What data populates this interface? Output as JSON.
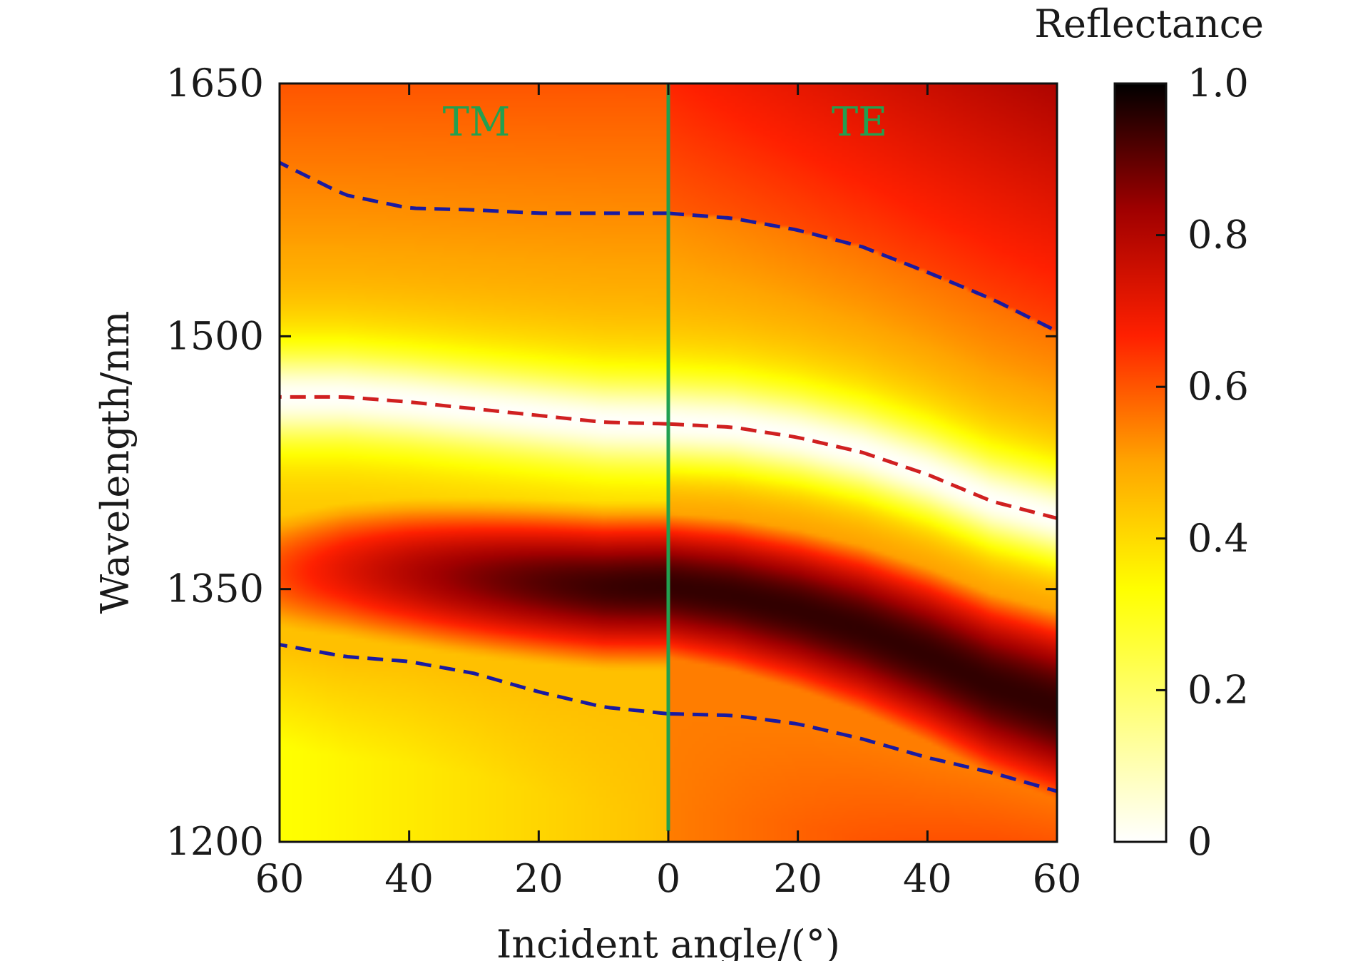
{
  "chart_data": {
    "type": "heatmap",
    "title": "",
    "xlabel": "Incident angle/(°)",
    "ylabel": "Wavelength/nm",
    "colorbar_label": "Reflectance",
    "x_panels": [
      {
        "name": "TM",
        "xlim": [
          60,
          0
        ],
        "ticks": [
          60,
          40,
          20,
          0
        ]
      },
      {
        "name": "TE",
        "xlim": [
          0,
          60
        ],
        "ticks": [
          0,
          20,
          40,
          60
        ]
      }
    ],
    "x_tick_labels": [
      "60",
      "40",
      "20",
      "0",
      "20",
      "40",
      "60"
    ],
    "ylim": [
      1200,
      1650
    ],
    "y_ticks": [
      1200,
      1350,
      1500,
      1650
    ],
    "y_tick_labels": [
      "1200",
      "1350",
      "1500",
      "1650"
    ],
    "colorbar": {
      "range": [
        0,
        1.0
      ],
      "ticks": [
        0,
        0.2,
        0.4,
        0.6,
        0.8,
        1.0
      ],
      "tick_labels": [
        "0",
        "0.2",
        "0.4",
        "0.6",
        "0.8",
        "1.0"
      ],
      "colormap": [
        "#ffffff",
        "#ffff80",
        "#ffff00",
        "#ffa500",
        "#ff2000",
        "#a00000",
        "#000000"
      ]
    },
    "divider": {
      "at_angle": 0,
      "color": "#22a050"
    },
    "panel_label_color": "#22a050",
    "curves": [
      {
        "name": "upper band edge",
        "color": "#1a1aa0",
        "style": "dashed",
        "TM": {
          "angle": [
            60,
            50,
            40,
            30,
            20,
            10,
            0
          ],
          "wavelength": [
            1603,
            1584,
            1576,
            1575,
            1573,
            1573,
            1573
          ]
        },
        "TE": {
          "angle": [
            0,
            10,
            20,
            30,
            40,
            50,
            60
          ],
          "wavelength": [
            1573,
            1570,
            1563,
            1553,
            1538,
            1522,
            1503
          ]
        }
      },
      {
        "name": "reflectance minimum",
        "color": "#d02020",
        "style": "dashed",
        "TM": {
          "angle": [
            60,
            50,
            40,
            30,
            20,
            10,
            0
          ],
          "wavelength": [
            1464,
            1464,
            1461,
            1457,
            1453,
            1449,
            1448
          ]
        },
        "TE": {
          "angle": [
            0,
            10,
            20,
            30,
            40,
            50,
            60
          ],
          "wavelength": [
            1448,
            1446,
            1440,
            1431,
            1418,
            1402,
            1392
          ]
        }
      },
      {
        "name": "lower band edge",
        "color": "#1a1aa0",
        "style": "dashed",
        "TM": {
          "angle": [
            60,
            50,
            40,
            30,
            20,
            10,
            0
          ],
          "wavelength": [
            1317,
            1310,
            1307,
            1300,
            1289,
            1280,
            1276
          ]
        },
        "TE": {
          "angle": [
            0,
            10,
            20,
            30,
            40,
            50,
            60
          ],
          "wavelength": [
            1276,
            1275,
            1270,
            1261,
            1250,
            1241,
            1230
          ]
        }
      }
    ],
    "heatmap_features": {
      "high_reflectance_band_center_nm": 1352,
      "high_reflectance_peak": 0.95,
      "low_reflectance_band": "along reflectance minimum curve, near 0",
      "upper_region_reflectance": [
        0.4,
        0.6
      ],
      "bottom_left_reflectance": 0.3
    }
  }
}
